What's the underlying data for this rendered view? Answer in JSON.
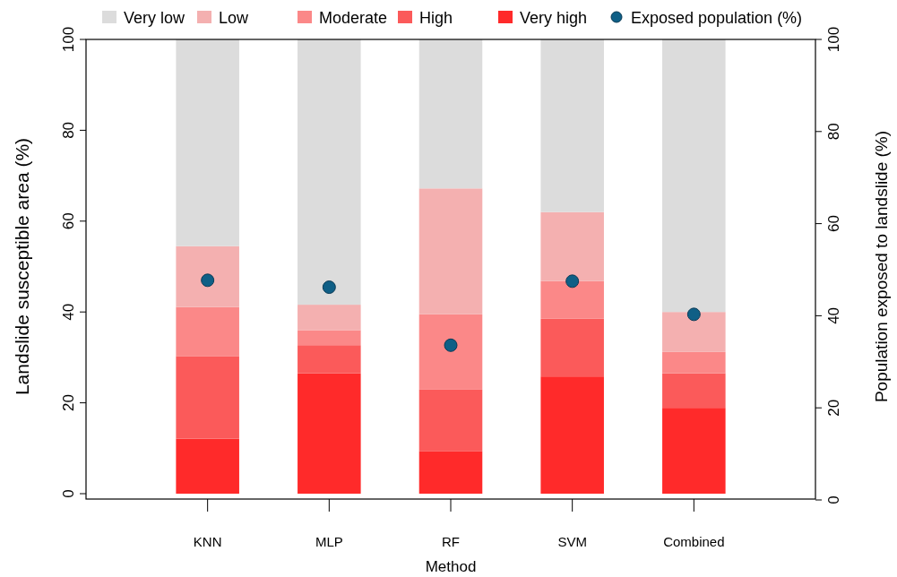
{
  "chart_data": {
    "type": "bar",
    "stacked": true,
    "xlabel": "Method",
    "ylabel": "Landslide susceptible area (%)",
    "y2label": "Population exposed to landslide (%)",
    "categories": [
      "KNN",
      "MLP",
      "RF",
      "SVM",
      "Combined"
    ],
    "series": [
      {
        "name": "Very high",
        "color": "#ff2a2a",
        "values": [
          12.1,
          26.5,
          9.3,
          25.8,
          18.9
        ]
      },
      {
        "name": "High",
        "color": "#fb5a5a",
        "values": [
          18.2,
          6.2,
          13.6,
          12.7,
          7.6
        ]
      },
      {
        "name": "Moderate",
        "color": "#fb8888",
        "values": [
          10.8,
          3.3,
          16.6,
          8.3,
          4.7
        ]
      },
      {
        "name": "Low",
        "color": "#f4b0b0",
        "values": [
          13.4,
          5.6,
          27.7,
          15.2,
          8.8
        ]
      },
      {
        "name": "Very low",
        "color": "#dcdcdc",
        "values": [
          45.5,
          58.4,
          32.8,
          38.0,
          60.0
        ]
      },
      {
        "name": "Exposed population (%)",
        "type": "scatter",
        "axis": "y2",
        "marker": "circle",
        "color": "#0f5f86",
        "values": [
          47.7,
          46.2,
          33.6,
          47.5,
          40.3
        ]
      }
    ],
    "ylim": [
      0,
      100
    ],
    "yticks": [
      0,
      20,
      40,
      60,
      80,
      100
    ],
    "y2lim": [
      0,
      100
    ],
    "y2ticks": [
      0,
      20,
      40,
      60,
      80,
      100
    ],
    "legend": "top",
    "grid": false
  }
}
